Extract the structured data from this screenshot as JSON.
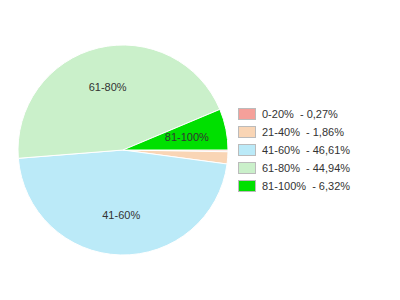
{
  "chart_data": {
    "type": "pie",
    "categories": [
      null,
      null,
      "41-60%",
      "61-80%",
      "81-100%"
    ],
    "values": [
      0.27,
      1.86,
      46.61,
      44.94,
      6.32
    ],
    "colors": [
      "#f5a09a",
      "#f9d5b5",
      "#bbeaf8",
      "#caf0ca",
      "#00e000"
    ],
    "legend_labels": [
      "0-20%  - 0,27%",
      "21-40%  - 1,86%",
      "41-60%  - 46,61%",
      "61-80%  - 44,94%",
      "81-100%  - 6,32%"
    ],
    "legend": "right"
  }
}
